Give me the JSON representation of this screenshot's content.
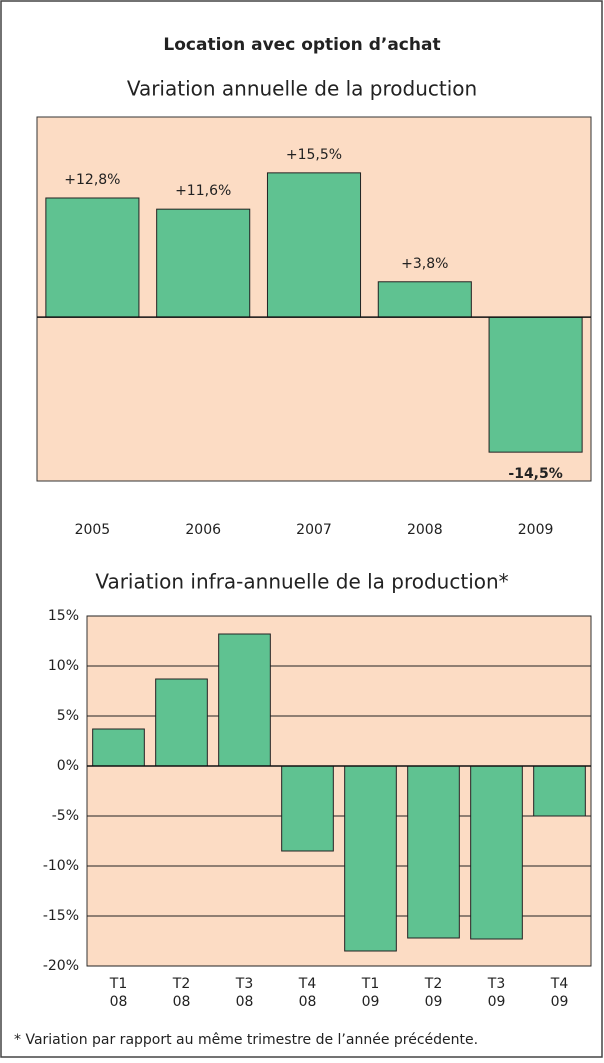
{
  "title": "Location avec option d’achat",
  "chart_data": [
    {
      "type": "bar",
      "title": "Variation annuelle de la production",
      "categories": [
        "2005",
        "2006",
        "2007",
        "2008",
        "2009"
      ],
      "values": [
        12.8,
        11.6,
        15.5,
        3.8,
        -14.5
      ],
      "value_labels": [
        "+12,8%",
        "+11,6%",
        "+15,5%",
        "+3,8%",
        "-14,5%"
      ],
      "color": "#5fc291",
      "background": "#fcdcc4",
      "ylim": [
        -17.6,
        21.5
      ]
    },
    {
      "type": "bar",
      "title": "Variation infra-annuelle de la production*",
      "categories": [
        [
          "T1",
          "08"
        ],
        [
          "T2",
          "08"
        ],
        [
          "T3",
          "08"
        ],
        [
          "T4",
          "08"
        ],
        [
          "T1",
          "09"
        ],
        [
          "T2",
          "09"
        ],
        [
          "T3",
          "09"
        ],
        [
          "T4",
          "09"
        ]
      ],
      "values": [
        3.7,
        8.7,
        13.2,
        -8.5,
        -18.5,
        -17.2,
        -17.3,
        -5.0
      ],
      "color": "#5fc291",
      "background": "#fcdcc4",
      "ylim": [
        -20,
        15
      ],
      "yticks": [
        {
          "value": 15,
          "label": "15%"
        },
        {
          "value": 10,
          "label": "10%"
        },
        {
          "value": 5,
          "label": "5%"
        },
        {
          "value": 0,
          "label": "0%"
        },
        {
          "value": -5,
          "label": "-5%"
        },
        {
          "value": -10,
          "label": "-10%"
        },
        {
          "value": -15,
          "label": "-15%"
        },
        {
          "value": -20,
          "label": "-20%"
        }
      ],
      "grid": true
    }
  ],
  "footnote": "* Variation par rapport au même trimestre de l’année précédente."
}
